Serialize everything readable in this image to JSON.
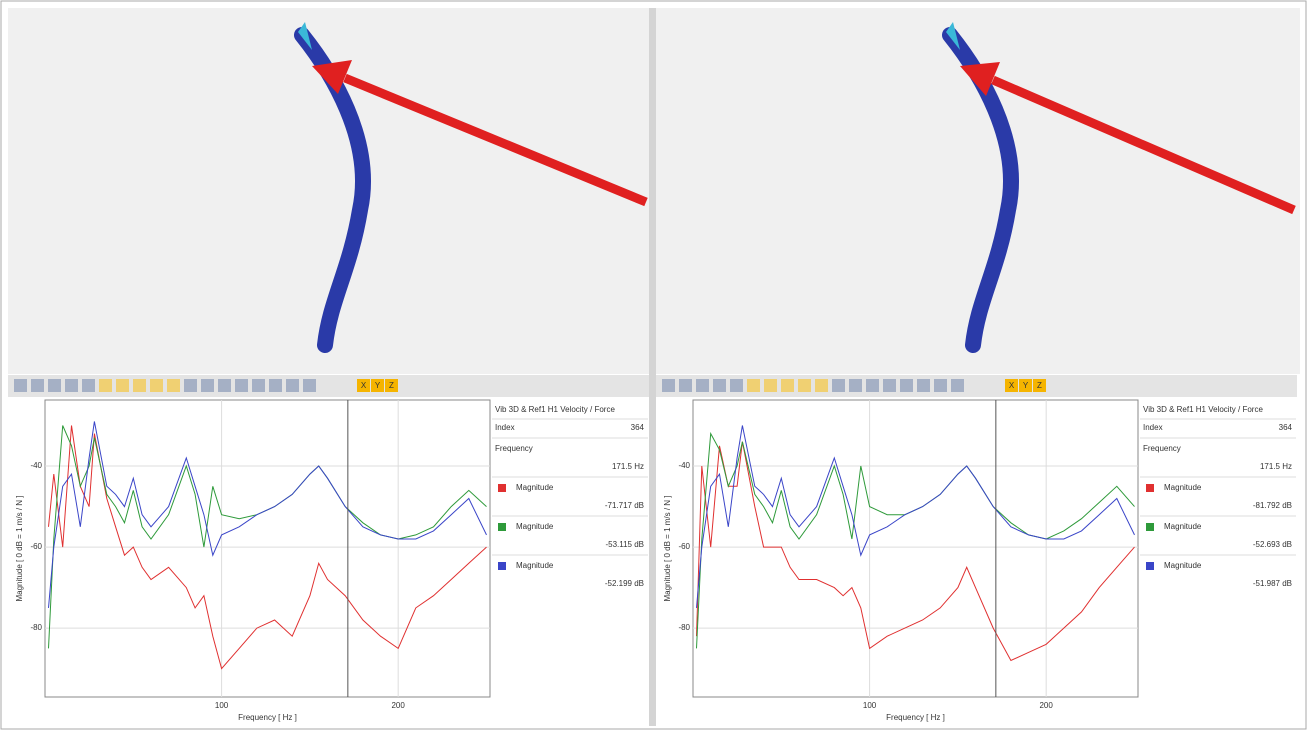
{
  "chart_data": [
    {
      "type": "line",
      "xlabel": "Frequency [ Hz ]",
      "ylabel": "Magnitude [ 0 dB = 1 m/s / N ]",
      "x": [
        2,
        5,
        10,
        15,
        20,
        25,
        28,
        35,
        40,
        45,
        50,
        55,
        60,
        70,
        80,
        85,
        90,
        95,
        100,
        110,
        120,
        130,
        140,
        150,
        155,
        160,
        170,
        180,
        190,
        200,
        210,
        220,
        230,
        240,
        250
      ],
      "xlim": [
        0,
        252
      ],
      "xticks": [
        100,
        200
      ],
      "ylim": [
        -97,
        -23.7
      ],
      "yticks": [
        -40,
        -60,
        -80
      ],
      "grid": true,
      "cursor_x": 171.5,
      "readout": {
        "title": "Vib 3D & Ref1 H1 Velocity / Force",
        "index_label": "Index",
        "index": "364",
        "frequency_label": "Frequency",
        "frequency": "171.5 Hz"
      },
      "series": [
        {
          "name": "Magnitude",
          "color": "#e03030",
          "readout": "-71.717 dB",
          "values": [
            -55,
            -42,
            -60,
            -30,
            -45,
            -50,
            -32,
            -48,
            -55,
            -62,
            -60,
            -65,
            -68,
            -65,
            -70,
            -75,
            -72,
            -82,
            -90,
            -85,
            -80,
            -78,
            -82,
            -72,
            -64,
            -68,
            -72,
            -78,
            -82,
            -85,
            -75,
            -72,
            -68,
            -64,
            -60
          ]
        },
        {
          "name": "Magnitude",
          "color": "#2e9a3a",
          "readout": "-53.115 dB",
          "values": [
            -85,
            -58,
            -30,
            -35,
            -45,
            -40,
            -33,
            -47,
            -50,
            -54,
            -46,
            -55,
            -58,
            -52,
            -40,
            -47,
            -60,
            -45,
            -52,
            -53,
            -52,
            -50,
            -47,
            -42,
            -40,
            -43,
            -50,
            -54,
            -57,
            -58,
            -57,
            -55,
            -50,
            -46,
            -50
          ]
        },
        {
          "name": "Magnitude",
          "color": "#3a45c8",
          "readout": "-52.199 dB",
          "values": [
            -75,
            -60,
            -45,
            -42,
            -55,
            -38,
            -29,
            -45,
            -47,
            -50,
            -43,
            -52,
            -55,
            -50,
            -38,
            -45,
            -52,
            -62,
            -57,
            -55,
            -52,
            -50,
            -47,
            -42,
            -40,
            -43,
            -50,
            -55,
            -57,
            -58,
            -58,
            -56,
            -52,
            -48,
            -57
          ]
        }
      ]
    },
    {
      "type": "line",
      "xlabel": "Frequency [ Hz ]",
      "ylabel": "Magnitude [ 0 dB = 1 m/s / N ]",
      "x": [
        2,
        5,
        10,
        15,
        20,
        25,
        28,
        35,
        40,
        45,
        50,
        55,
        60,
        70,
        80,
        85,
        90,
        95,
        100,
        110,
        120,
        130,
        140,
        150,
        155,
        160,
        170,
        180,
        190,
        200,
        210,
        220,
        230,
        240,
        250
      ],
      "xlim": [
        0,
        252
      ],
      "xticks": [
        100,
        200
      ],
      "ylim": [
        -97,
        -23.7
      ],
      "yticks": [
        -40,
        -60,
        -80
      ],
      "grid": true,
      "cursor_x": 171.5,
      "readout": {
        "title": "Vib 3D & Ref1 H1 Velocity / Force",
        "index_label": "Index",
        "index": "364",
        "frequency_label": "Frequency",
        "frequency": "171.5 Hz"
      },
      "series": [
        {
          "name": "Magnitude",
          "color": "#e03030",
          "readout": "-81.792 dB",
          "values": [
            -82,
            -40,
            -60,
            -35,
            -45,
            -45,
            -34,
            -50,
            -60,
            -60,
            -60,
            -65,
            -68,
            -68,
            -70,
            -72,
            -70,
            -75,
            -85,
            -82,
            -80,
            -78,
            -75,
            -70,
            -65,
            -70,
            -80,
            -88,
            -86,
            -84,
            -80,
            -76,
            -70,
            -65,
            -60
          ]
        },
        {
          "name": "Magnitude",
          "color": "#2e9a3a",
          "readout": "-52.693 dB",
          "values": [
            -85,
            -58,
            -32,
            -36,
            -45,
            -40,
            -34,
            -47,
            -50,
            -54,
            -46,
            -55,
            -58,
            -52,
            -40,
            -47,
            -58,
            -40,
            -50,
            -52,
            -52,
            -50,
            -47,
            -42,
            -40,
            -43,
            -50,
            -54,
            -57,
            -58,
            -56,
            -53,
            -49,
            -45,
            -50
          ]
        },
        {
          "name": "Magnitude",
          "color": "#3a45c8",
          "readout": "-51.987 dB",
          "values": [
            -75,
            -60,
            -45,
            -42,
            -55,
            -38,
            -30,
            -45,
            -47,
            -50,
            -43,
            -52,
            -55,
            -50,
            -38,
            -45,
            -52,
            -62,
            -57,
            -55,
            -52,
            -50,
            -47,
            -42,
            -40,
            -43,
            -50,
            -55,
            -57,
            -58,
            -58,
            -56,
            -52,
            -48,
            -57
          ]
        }
      ]
    }
  ],
  "toolbar": [
    "X",
    "Y",
    "Z"
  ]
}
